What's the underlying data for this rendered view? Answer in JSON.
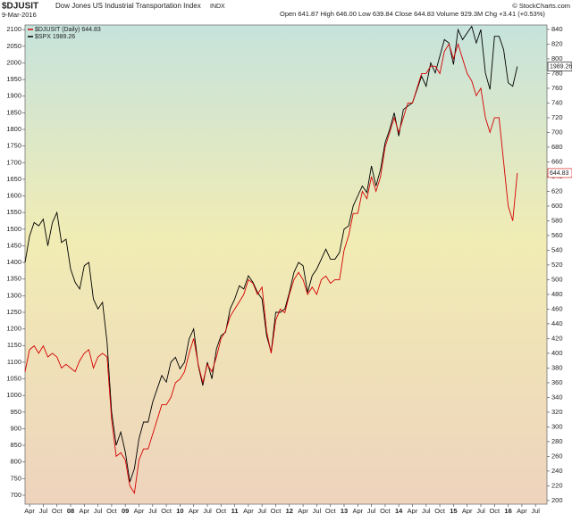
{
  "chart_data": {
    "type": "line",
    "title": "$DJUSIT",
    "subtitle": "Dow Jones US Industrial Transportation Index",
    "exchange": "INDX",
    "date": "9-Mar-2016",
    "quote": "Open 641.87  High 646.00  Low 639.84  Close 644.83  Volume 929.3M  Chg +3.41 (+0.53%)",
    "credit": "© StockCharts.com",
    "x": [
      "2007-03",
      "2007-04",
      "2007-05",
      "2007-06",
      "2007-07",
      "2007-08",
      "2007-09",
      "2007-10",
      "2007-11",
      "2007-12",
      "2008-01",
      "2008-02",
      "2008-03",
      "2008-04",
      "2008-05",
      "2008-06",
      "2008-07",
      "2008-08",
      "2008-09",
      "2008-10",
      "2008-11",
      "2008-12",
      "2009-01",
      "2009-02",
      "2009-03",
      "2009-04",
      "2009-05",
      "2009-06",
      "2009-07",
      "2009-08",
      "2009-09",
      "2009-10",
      "2009-11",
      "2009-12",
      "2010-01",
      "2010-02",
      "2010-03",
      "2010-04",
      "2010-05",
      "2010-06",
      "2010-07",
      "2010-08",
      "2010-09",
      "2010-10",
      "2010-11",
      "2010-12",
      "2011-01",
      "2011-02",
      "2011-03",
      "2011-04",
      "2011-05",
      "2011-06",
      "2011-07",
      "2011-08",
      "2011-09",
      "2011-10",
      "2011-11",
      "2011-12",
      "2012-01",
      "2012-02",
      "2012-03",
      "2012-04",
      "2012-05",
      "2012-06",
      "2012-07",
      "2012-08",
      "2012-09",
      "2012-10",
      "2012-11",
      "2012-12",
      "2013-01",
      "2013-02",
      "2013-03",
      "2013-04",
      "2013-05",
      "2013-06",
      "2013-07",
      "2013-08",
      "2013-09",
      "2013-10",
      "2013-11",
      "2013-12",
      "2014-01",
      "2014-02",
      "2014-03",
      "2014-04",
      "2014-05",
      "2014-06",
      "2014-07",
      "2014-08",
      "2014-09",
      "2014-10",
      "2014-11",
      "2014-12",
      "2015-01",
      "2015-02",
      "2015-03",
      "2015-04",
      "2015-05",
      "2015-06",
      "2015-07",
      "2015-08",
      "2015-09",
      "2015-10",
      "2015-11",
      "2015-12",
      "2016-01",
      "2016-02",
      "2016-03"
    ],
    "series": [
      {
        "name": "$DJUSIT (Daily) 644.83",
        "color": "#d40000",
        "axis": "y2",
        "values": [
          375,
          405,
          410,
          400,
          410,
          395,
          400,
          395,
          380,
          385,
          380,
          375,
          390,
          400,
          405,
          380,
          395,
          400,
          395,
          310,
          260,
          265,
          255,
          220,
          210,
          255,
          270,
          270,
          290,
          310,
          330,
          330,
          340,
          360,
          365,
          375,
          400,
          420,
          385,
          360,
          385,
          375,
          395,
          420,
          430,
          450,
          460,
          470,
          480,
          500,
          495,
          480,
          490,
          430,
          400,
          445,
          460,
          455,
          480,
          500,
          510,
          500,
          480,
          490,
          480,
          500,
          505,
          495,
          500,
          500,
          540,
          560,
          590,
          590,
          620,
          610,
          640,
          620,
          640,
          680,
          700,
          720,
          700,
          720,
          740,
          740,
          760,
          780,
          780,
          790,
          790,
          780,
          810,
          820,
          800,
          820,
          800,
          780,
          770,
          750,
          760,
          720,
          700,
          720,
          720,
          660,
          600,
          580,
          644.83
        ]
      },
      {
        "name": "$SPX 1989.26",
        "color": "#000000",
        "axis": "y",
        "values": [
          1400,
          1480,
          1520,
          1510,
          1530,
          1450,
          1520,
          1550,
          1460,
          1470,
          1380,
          1340,
          1320,
          1390,
          1400,
          1290,
          1260,
          1280,
          1160,
          950,
          850,
          890,
          830,
          740,
          780,
          870,
          920,
          920,
          980,
          1020,
          1060,
          1040,
          1100,
          1115,
          1080,
          1100,
          1170,
          1200,
          1090,
          1030,
          1100,
          1050,
          1140,
          1180,
          1190,
          1260,
          1290,
          1330,
          1320,
          1360,
          1340,
          1310,
          1290,
          1180,
          1130,
          1250,
          1250,
          1260,
          1310,
          1370,
          1400,
          1390,
          1310,
          1360,
          1380,
          1410,
          1440,
          1410,
          1410,
          1430,
          1500,
          1510,
          1570,
          1600,
          1630,
          1610,
          1690,
          1630,
          1680,
          1760,
          1800,
          1850,
          1780,
          1860,
          1870,
          1880,
          1920,
          1960,
          1930,
          2000,
          1970,
          2020,
          2070,
          2060,
          1995,
          2100,
          2070,
          2090,
          2110,
          2060,
          2100,
          1970,
          1920,
          2080,
          2080,
          2040,
          1940,
          1930,
          1989.26
        ]
      }
    ],
    "xticks": [
      {
        "value": "2007-04",
        "label": "Apr"
      },
      {
        "value": "2007-07",
        "label": "Jul"
      },
      {
        "value": "2007-10",
        "label": "Oct"
      },
      {
        "value": "2008-01",
        "label": "08"
      },
      {
        "value": "2008-04",
        "label": "Apr"
      },
      {
        "value": "2008-07",
        "label": "Jul"
      },
      {
        "value": "2008-10",
        "label": "Oct"
      },
      {
        "value": "2009-01",
        "label": "09"
      },
      {
        "value": "2009-04",
        "label": "Apr"
      },
      {
        "value": "2009-07",
        "label": "Jul"
      },
      {
        "value": "2009-10",
        "label": "Oct"
      },
      {
        "value": "2010-01",
        "label": "10"
      },
      {
        "value": "2010-04",
        "label": "Apr"
      },
      {
        "value": "2010-07",
        "label": "Jul"
      },
      {
        "value": "2010-10",
        "label": "Oct"
      },
      {
        "value": "2011-01",
        "label": "11"
      },
      {
        "value": "2011-04",
        "label": "Apr"
      },
      {
        "value": "2011-07",
        "label": "Jul"
      },
      {
        "value": "2011-10",
        "label": "Oct"
      },
      {
        "value": "2012-01",
        "label": "12"
      },
      {
        "value": "2012-04",
        "label": "Apr"
      },
      {
        "value": "2012-07",
        "label": "Jul"
      },
      {
        "value": "2012-10",
        "label": "Oct"
      },
      {
        "value": "2013-01",
        "label": "13"
      },
      {
        "value": "2013-04",
        "label": "Apr"
      },
      {
        "value": "2013-07",
        "label": "Jul"
      },
      {
        "value": "2013-10",
        "label": "Oct"
      },
      {
        "value": "2014-01",
        "label": "14"
      },
      {
        "value": "2014-04",
        "label": "Apr"
      },
      {
        "value": "2014-07",
        "label": "Jul"
      },
      {
        "value": "2014-10",
        "label": "Oct"
      },
      {
        "value": "2015-01",
        "label": "15"
      },
      {
        "value": "2015-04",
        "label": "Apr"
      },
      {
        "value": "2015-07",
        "label": "Jul"
      },
      {
        "value": "2015-10",
        "label": "Oct"
      },
      {
        "value": "2016-01",
        "label": "16"
      },
      {
        "value": "2016-04",
        "label": "Apr"
      },
      {
        "value": "2016-07",
        "label": "Jul"
      }
    ],
    "ylim": [
      673,
      2114
    ],
    "yticks": [
      700,
      750,
      800,
      850,
      900,
      950,
      1000,
      1050,
      1100,
      1150,
      1200,
      1250,
      1300,
      1350,
      1400,
      1450,
      1500,
      1550,
      1600,
      1650,
      1700,
      1750,
      1800,
      1850,
      1900,
      1950,
      2000,
      2050,
      2100
    ],
    "y2lim": [
      195,
      846
    ],
    "y2ticks": [
      200,
      220,
      240,
      260,
      280,
      300,
      320,
      340,
      360,
      380,
      400,
      420,
      440,
      460,
      480,
      500,
      520,
      540,
      560,
      580,
      600,
      620,
      640,
      660,
      680,
      700,
      720,
      740,
      760,
      780,
      800,
      820,
      840
    ],
    "grid": false
  }
}
